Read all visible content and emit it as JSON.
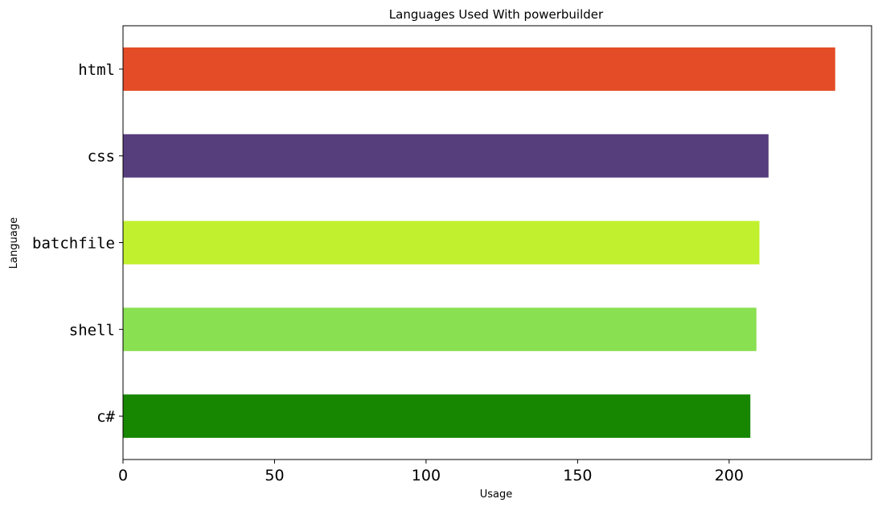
{
  "chart_data": {
    "type": "bar",
    "orientation": "horizontal",
    "title": "Languages Used With powerbuilder",
    "xlabel": "Usage",
    "ylabel": "Language",
    "categories": [
      "html",
      "css",
      "batchfile",
      "shell",
      "c#"
    ],
    "values": [
      235,
      213,
      210,
      209,
      207
    ],
    "colors": [
      "#e34c26",
      "#563d7c",
      "#c1f12e",
      "#89e051",
      "#178600"
    ],
    "xlim": [
      0,
      247
    ],
    "xticks": [
      0,
      50,
      100,
      150,
      200
    ],
    "grid": false,
    "legend": "none"
  }
}
